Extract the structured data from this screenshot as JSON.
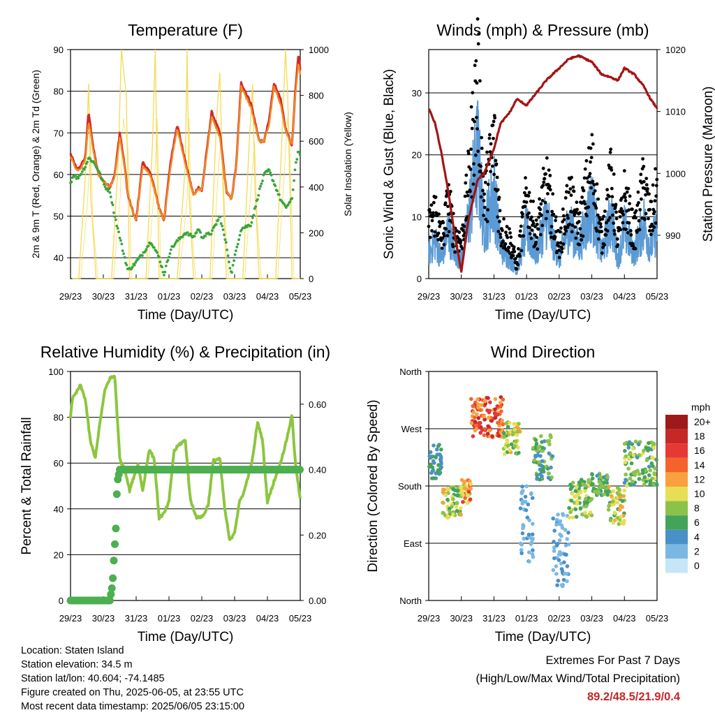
{
  "colors": {
    "temp2m": "#d62728",
    "temp9m": "#f08a24",
    "dewpoint": "#3aa53a",
    "solar": "#f5d84a",
    "wind": "#5b9bd5",
    "gust": "#000000",
    "pressure": "#a31515",
    "rh": "#8cc63f",
    "precip": "#4caf50",
    "extremes": "#c62828"
  },
  "x_ticks": [
    "29/23",
    "30/23",
    "31/23",
    "01/23",
    "02/23",
    "03/23",
    "04/23",
    "05/23"
  ],
  "footer_left": {
    "location": "Location: Staten Island",
    "elevation": "Station elevation: 34.5 m",
    "latlon": "Station lat/lon: 40.604; -74.1485",
    "created": "Figure created on Thu, 2025-06-05, at 23:55 UTC",
    "recent": "Most recent data timestamp: 2025/06/05 23:15:00"
  },
  "footer_right": {
    "title": "Extremes For Past 7 Days",
    "subtitle": "(High/Low/Max Wind/Total Precipitation)",
    "values": "89.2/48.5/21.9/0.4"
  },
  "chart_data": [
    {
      "type": "line",
      "title": "Temperature (F)",
      "xlabel": "Time (Day/UTC)",
      "ylabel": "2m & 9m T (Red, Orange) & 2m Td (Green)",
      "ylabel_right": "Solar Insolation (Yellow)",
      "ylim": [
        35,
        90
      ],
      "y_ticks": [
        40,
        50,
        60,
        70,
        80,
        90
      ],
      "ylim_right": [
        0,
        1000
      ],
      "y_ticks_right": [
        0,
        200,
        400,
        600,
        800,
        1000
      ],
      "x": [
        0,
        0.1,
        0.2,
        0.3,
        0.45,
        0.55,
        0.7,
        0.85,
        1.05,
        1.2,
        1.35,
        1.5,
        1.65,
        1.75,
        1.9,
        2.0,
        2.2,
        2.45,
        2.7,
        2.85,
        3.05,
        3.25,
        3.5,
        3.75,
        3.9,
        4.0,
        4.3,
        4.55,
        4.75,
        4.9,
        5.05,
        5.2,
        5.5,
        5.75,
        5.9,
        6.05,
        6.2,
        6.4,
        6.55,
        6.75,
        6.85,
        6.95,
        7.0
      ],
      "series": [
        {
          "key": "temp2m",
          "values": [
            65,
            63,
            61,
            62,
            64,
            75,
            66,
            60,
            58,
            57,
            60,
            70,
            62,
            55,
            51,
            49,
            63,
            60,
            52,
            49,
            63,
            72,
            63,
            55,
            57,
            56,
            75,
            70,
            56,
            54,
            62,
            82,
            77,
            68,
            68,
            73,
            82,
            78,
            71,
            67,
            80,
            89,
            85
          ]
        },
        {
          "key": "temp9m",
          "values": [
            64.5,
            62.5,
            61,
            61.5,
            63.5,
            73,
            65.5,
            60,
            58,
            57,
            59.5,
            69,
            61.5,
            55,
            51,
            49,
            62,
            59.5,
            52,
            49,
            62,
            71,
            62.5,
            55,
            56.5,
            56,
            74,
            69,
            56,
            54,
            61.5,
            81,
            76,
            68,
            68,
            72,
            81,
            77,
            70.5,
            67,
            79,
            87,
            84
          ]
        },
        {
          "key": "dewpoint",
          "values": [
            58,
            60,
            59,
            60,
            62,
            64,
            63,
            61,
            57,
            56,
            50,
            45,
            40,
            37,
            38,
            39,
            41,
            44,
            40,
            36,
            42,
            44,
            46,
            45,
            47,
            45,
            46,
            50,
            43,
            36,
            42,
            47,
            48,
            56,
            60,
            61,
            58,
            54,
            52,
            54,
            62,
            66,
            64
          ]
        }
      ],
      "solar_series": {
        "key": "solar",
        "x": [
          0.05,
          0.25,
          0.45,
          0.55,
          0.62,
          0.78,
          1.0,
          1.25,
          1.45,
          1.55,
          1.7,
          1.8,
          2.05,
          2.3,
          2.5,
          2.58,
          2.62,
          2.7,
          2.95,
          3.25,
          3.5,
          3.55,
          3.62,
          3.75,
          4.0,
          4.25,
          4.45,
          4.55,
          4.62,
          4.75,
          5.0,
          5.25,
          5.45,
          5.55,
          5.62,
          5.75,
          6.0,
          6.25,
          6.45,
          6.55,
          6.62,
          6.75,
          7.0
        ],
        "values": [
          0,
          0,
          450,
          850,
          350,
          0,
          0,
          0,
          500,
          1000,
          800,
          0,
          0,
          0,
          600,
          1000,
          650,
          0,
          0,
          0,
          500,
          1000,
          350,
          0,
          0,
          0,
          700,
          900,
          500,
          0,
          0,
          0,
          600,
          850,
          400,
          0,
          0,
          0,
          650,
          1000,
          800,
          0,
          0
        ]
      }
    },
    {
      "type": "line",
      "title": "Winds (mph) & Pressure (mb)",
      "xlabel": "Time (Day/UTC)",
      "ylabel": "Sonic Wind & Gust (Blue, Black)",
      "ylabel_right": "Station Pressure (Maroon)",
      "ylim": [
        0,
        37
      ],
      "y_ticks": [
        0,
        10,
        20,
        30
      ],
      "ylim_right": [
        983,
        1020
      ],
      "y_ticks_right": [
        990,
        1000,
        1010,
        1020
      ],
      "x": [
        0,
        0.2,
        0.4,
        0.6,
        0.8,
        1.0,
        1.2,
        1.5,
        1.7,
        2.0,
        2.2,
        2.5,
        2.7,
        3.0,
        3.3,
        3.6,
        4.0,
        4.3,
        4.6,
        5.0,
        5.3,
        5.6,
        5.8,
        6.0,
        6.3,
        6.6,
        6.8,
        7.0
      ],
      "series": [
        {
          "key": "wind",
          "values": [
            4,
            6,
            3,
            8,
            4,
            3,
            9,
            20,
            8,
            14,
            5,
            3,
            1,
            8,
            4,
            10,
            3,
            9,
            5,
            12,
            4,
            10,
            3,
            8,
            4,
            9,
            5,
            8
          ]
        },
        {
          "key": "gust",
          "values": [
            8,
            11,
            6,
            12,
            7,
            6,
            14,
            32,
            12,
            22,
            8,
            6,
            2,
            13,
            7,
            15,
            5,
            13,
            8,
            18,
            6,
            16,
            6,
            13,
            7,
            15,
            9,
            14
          ]
        },
        {
          "key": "pressure",
          "values": [
            1010.5,
            1008,
            1003,
            997,
            990,
            984,
            992,
            999,
            1000,
            1004,
            1008,
            1010,
            1012,
            1011,
            1013,
            1015,
            1017,
            1018.5,
            1019,
            1018,
            1016,
            1015.5,
            1015,
            1017,
            1016,
            1014,
            1012,
            1010.5
          ]
        }
      ]
    },
    {
      "type": "line",
      "title": "Relative Humidity (%) & Precipitation (in)",
      "xlabel": "Time (Day/UTC)",
      "ylabel": "Percent & Total Rainfall",
      "ylim": [
        0,
        100
      ],
      "y_ticks": [
        0,
        20,
        40,
        60,
        80,
        100
      ],
      "ylim_right": [
        0,
        0.7
      ],
      "y_ticks_right": [
        "0.00",
        "0.20",
        "0.40",
        "0.60"
      ],
      "series": [
        {
          "key": "rh",
          "x": [
            0,
            0.05,
            0.15,
            0.3,
            0.45,
            0.6,
            0.75,
            0.9,
            1.05,
            1.2,
            1.35,
            1.5,
            1.55,
            1.65,
            1.8,
            1.95,
            2.05,
            2.2,
            2.4,
            2.55,
            2.7,
            2.85,
            3.0,
            3.15,
            3.3,
            3.5,
            3.65,
            3.85,
            4.05,
            4.2,
            4.35,
            4.55,
            4.7,
            4.85,
            5.0,
            5.15,
            5.3,
            5.55,
            5.7,
            5.85,
            6.0,
            6.2,
            6.35,
            6.55,
            6.75,
            6.85,
            7.0
          ],
          "values": [
            80,
            88,
            90,
            94,
            88,
            70,
            62,
            78,
            92,
            97,
            98,
            62,
            60,
            58,
            48,
            55,
            60,
            48,
            66,
            62,
            36,
            38,
            43,
            65,
            68,
            70,
            44,
            36,
            37,
            42,
            61,
            62,
            40,
            26,
            30,
            43,
            48,
            62,
            78,
            70,
            43,
            52,
            58,
            68,
            81,
            60,
            44
          ]
        },
        {
          "key": "precip",
          "x": [
            0,
            0.8,
            1.2,
            1.28,
            1.33,
            1.38,
            1.42,
            1.5,
            1.6,
            2.0,
            3.0,
            4.0,
            5.0,
            6.0,
            7.0
          ],
          "values": [
            0,
            0,
            0,
            0.05,
            0.14,
            0.22,
            0.36,
            0.4,
            0.4,
            0.4,
            0.4,
            0.4,
            0.4,
            0.4,
            0.4
          ]
        }
      ]
    },
    {
      "type": "scatter",
      "title": "Wind Direction",
      "xlabel": "Time (Day/UTC)",
      "ylabel": "Direction (Colored By Speed)",
      "ylim": [
        0,
        360
      ],
      "y_ticks": [
        "North",
        "East",
        "South",
        "West",
        "North"
      ],
      "legend_title": "mph",
      "legend_labels": [
        "20+",
        "18",
        "16",
        "14",
        "12",
        "10",
        "8",
        "6",
        "4",
        "2",
        "0"
      ],
      "legend_colors": [
        "#9e1a1a",
        "#c62828",
        "#e53935",
        "#f4642a",
        "#f9a03f",
        "#e8de55",
        "#8bc34a",
        "#43a35a",
        "#4a90c8",
        "#7ab8e3",
        "#c6e6f6"
      ],
      "clusters": [
        {
          "x": [
            0.0,
            0.4
          ],
          "dir": [
            190,
            250
          ],
          "speed": [
            3,
            7
          ]
        },
        {
          "x": [
            0.4,
            1.0
          ],
          "dir": [
            130,
            180
          ],
          "speed": [
            5,
            12
          ]
        },
        {
          "x": [
            1.0,
            1.3
          ],
          "dir": [
            150,
            190
          ],
          "speed": [
            8,
            16
          ]
        },
        {
          "x": [
            1.3,
            2.3
          ],
          "dir": [
            255,
            320
          ],
          "speed": [
            11,
            19
          ]
        },
        {
          "x": [
            2.3,
            2.8
          ],
          "dir": [
            230,
            280
          ],
          "speed": [
            6,
            12
          ]
        },
        {
          "x": [
            2.8,
            3.2
          ],
          "dir": [
            60,
            180
          ],
          "speed": [
            1,
            5
          ]
        },
        {
          "x": [
            3.2,
            3.8
          ],
          "dir": [
            190,
            260
          ],
          "speed": [
            3,
            9
          ]
        },
        {
          "x": [
            3.8,
            4.3
          ],
          "dir": [
            20,
            140
          ],
          "speed": [
            1,
            4
          ]
        },
        {
          "x": [
            4.3,
            5.0
          ],
          "dir": [
            130,
            190
          ],
          "speed": [
            5,
            11
          ]
        },
        {
          "x": [
            5.0,
            5.5
          ],
          "dir": [
            165,
            200
          ],
          "speed": [
            4,
            9
          ]
        },
        {
          "x": [
            5.5,
            6.0
          ],
          "dir": [
            120,
            180
          ],
          "speed": [
            6,
            13
          ]
        },
        {
          "x": [
            6.0,
            7.0
          ],
          "dir": [
            180,
            250
          ],
          "speed": [
            4,
            10
          ]
        }
      ]
    }
  ]
}
